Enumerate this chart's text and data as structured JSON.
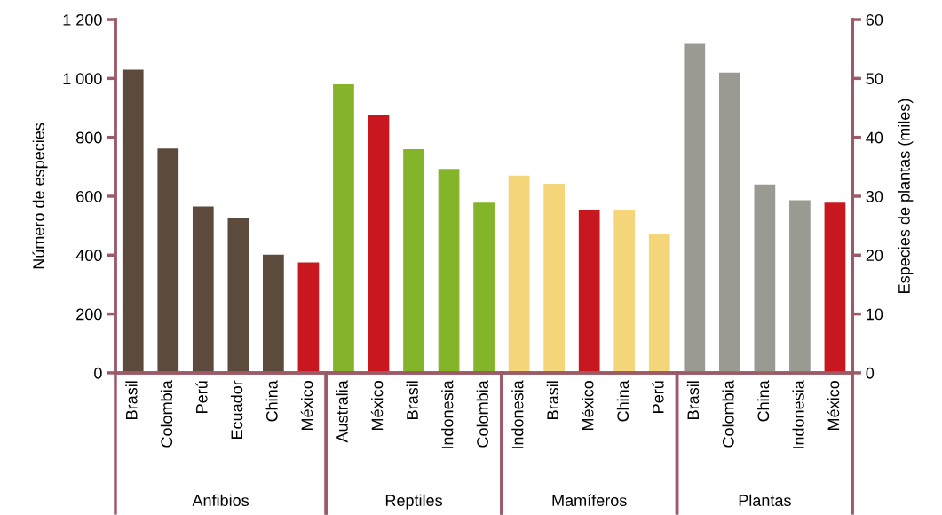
{
  "chart_data": {
    "type": "bar",
    "annotations": [
      "Anfibios",
      "Reptiles",
      "Mamíferos",
      "Plantas"
    ],
    "ylabel": "Número de especies",
    "y2label": "Especies de plantas (miles)",
    "categories": [
      "Brasil",
      "Colombia",
      "Perú",
      "Ecuador",
      "China",
      "México",
      "Australia",
      "México",
      "Brasil",
      "Indonesia",
      "Colombia",
      "Indonesia",
      "Brasil",
      "México",
      "China",
      "Perú",
      "Brasil",
      "Colombia",
      "China",
      "Indonesia",
      "México"
    ],
    "series": [
      {
        "values": [
          1030,
          762,
          565,
          527,
          402,
          375,
          null,
          null,
          null,
          null,
          null,
          null,
          null,
          null,
          null,
          null,
          null,
          null,
          null,
          null,
          null
        ],
        "colors": [
          "#5c4a3c",
          "#5c4a3c",
          "#5c4a3c",
          "#5c4a3c",
          "#5c4a3c",
          "#c8171e",
          null,
          null,
          null,
          null,
          null,
          null,
          null,
          null,
          null,
          null,
          null,
          null,
          null,
          null,
          null
        ]
      },
      {
        "values": [
          null,
          null,
          null,
          null,
          null,
          null,
          980,
          877,
          760,
          693,
          578,
          null,
          null,
          null,
          null,
          null,
          null,
          null,
          null,
          null,
          null
        ],
        "colors": [
          null,
          null,
          null,
          null,
          null,
          null,
          "#84b42a",
          "#c8171e",
          "#84b42a",
          "#84b42a",
          "#84b42a",
          null,
          null,
          null,
          null,
          null,
          null,
          null,
          null,
          null,
          null
        ]
      },
      {
        "values": [
          null,
          null,
          null,
          null,
          null,
          null,
          null,
          null,
          null,
          null,
          null,
          670,
          642,
          555,
          555,
          470,
          null,
          null,
          null,
          null,
          null
        ],
        "colors": [
          null,
          null,
          null,
          null,
          null,
          null,
          null,
          null,
          null,
          null,
          null,
          "#f5d57a",
          "#f5d57a",
          "#c8171e",
          "#f5d57a",
          "#f5d57a",
          null,
          null,
          null,
          null,
          null
        ]
      },
      {
        "axis": "y2",
        "values": [
          null,
          null,
          null,
          null,
          null,
          null,
          null,
          null,
          null,
          null,
          null,
          null,
          null,
          null,
          null,
          null,
          56,
          51,
          32,
          29.3,
          28.9
        ],
        "colors": [
          null,
          null,
          null,
          null,
          null,
          null,
          null,
          null,
          null,
          null,
          null,
          null,
          null,
          null,
          null,
          null,
          "#9b9a92",
          "#9b9a92",
          "#9b9a92",
          "#9b9a92",
          "#c8171e"
        ]
      }
    ],
    "ylim": [
      0,
      1200
    ],
    "yticks": [
      0,
      200,
      400,
      600,
      800,
      {
        "value": 1000,
        "label": "1 000"
      },
      {
        "value": 1200,
        "label": "1 200"
      }
    ],
    "y2lim": [
      0,
      60
    ],
    "y2ticks": [
      0,
      10,
      20,
      30,
      40,
      50,
      60
    ],
    "grid": false,
    "legend": false
  }
}
